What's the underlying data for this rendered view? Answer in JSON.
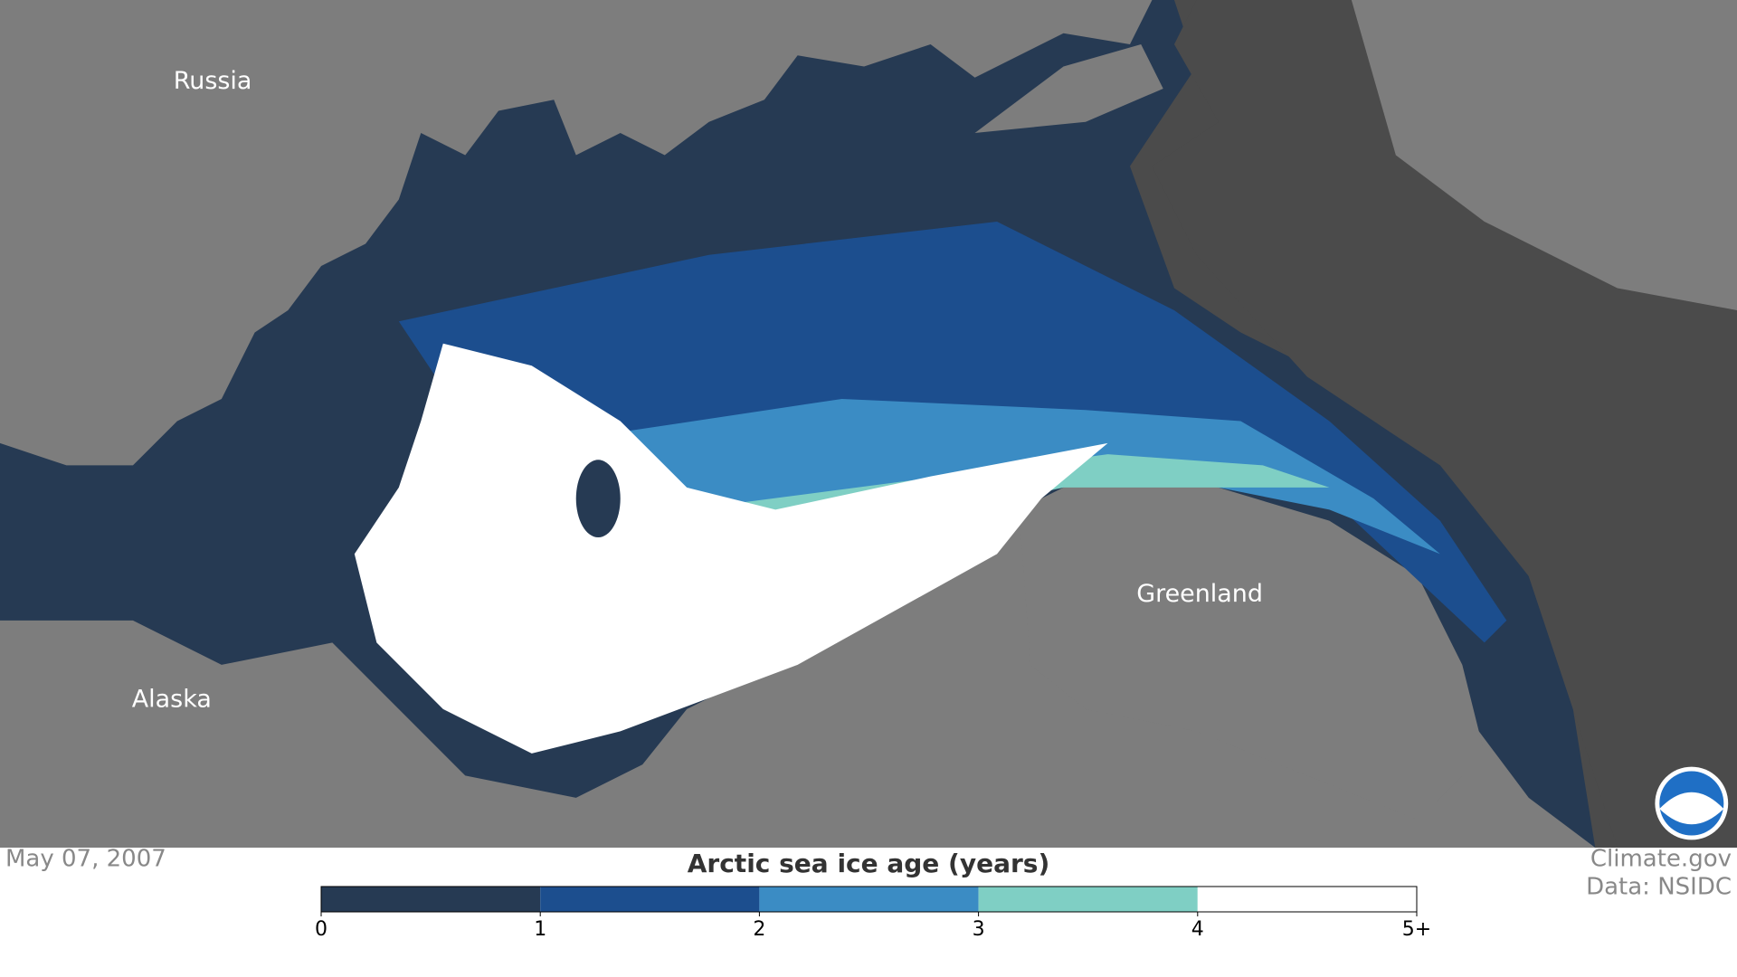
{
  "map": {
    "labels": [
      "Russia",
      "Alaska",
      "Greenland"
    ]
  },
  "footer": {
    "date": "May 07, 2007",
    "credit": "Climate.gov",
    "source": "Data: NSIDC"
  },
  "legend": {
    "title": "Arctic sea ice age (years)",
    "colors": [
      "#263a53",
      "#1c4e8e",
      "#3b8cc4",
      "#7fcfc4",
      "#ffffff"
    ],
    "ticks": [
      0,
      1,
      2,
      3,
      4,
      {
        "value": 5,
        "label": "5+"
      }
    ]
  }
}
